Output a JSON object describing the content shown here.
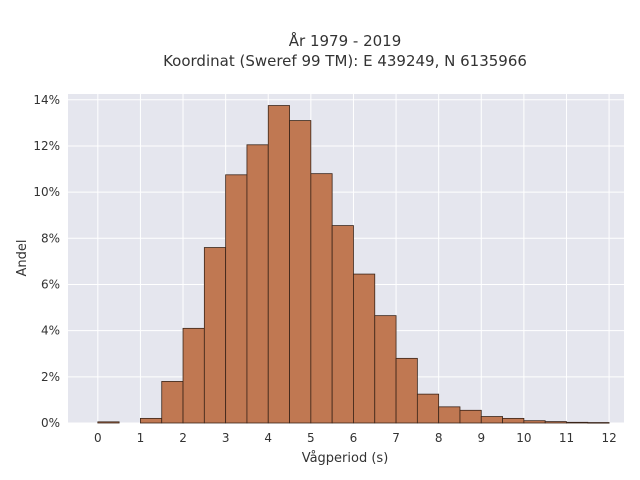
{
  "chart_data": {
    "type": "bar",
    "title": [
      "År 1979 - 2019",
      "Koordinat (Sweref 99 TM): E 439249, N 6135966"
    ],
    "xlabel": "Vågperiod (s)",
    "ylabel": "Andel",
    "bin_width": 0.5,
    "bin_starts": [
      0,
      0.5,
      1,
      1.5,
      2,
      2.5,
      3,
      3.5,
      4,
      4.5,
      5,
      5.5,
      6,
      6.5,
      7,
      7.5,
      8,
      8.5,
      9,
      9.5,
      10,
      10.5,
      11,
      11.5
    ],
    "values": [
      0.0005,
      0,
      0.002,
      0.018,
      0.041,
      0.076,
      0.1075,
      0.1205,
      0.1375,
      0.131,
      0.108,
      0.0855,
      0.0645,
      0.0465,
      0.028,
      0.0125,
      0.007,
      0.0055,
      0.0028,
      0.002,
      0.001,
      0.0006,
      0.0003,
      0.0002
    ],
    "xlim": [
      -0.7,
      12.35
    ],
    "ylim": [
      0,
      0.1425
    ],
    "xticks": [
      0,
      1,
      2,
      3,
      4,
      5,
      6,
      7,
      8,
      9,
      10,
      11,
      12
    ],
    "xtick_labels": [
      "0",
      "1",
      "2",
      "3",
      "4",
      "5",
      "6",
      "7",
      "8",
      "9",
      "10",
      "11",
      "12"
    ],
    "yticks": [
      0,
      0.02,
      0.04,
      0.06,
      0.08,
      0.1,
      0.12,
      0.14
    ],
    "ytick_labels": [
      "0%",
      "2%",
      "4%",
      "6%",
      "8%",
      "10%",
      "12%",
      "14%"
    ],
    "grid": true,
    "legend": "none",
    "colors": {
      "bar_fill": "#c07852",
      "bar_edge": "#3a2418",
      "plot_background": "#e5e6ee",
      "grid": "#ffffff",
      "text": "#333333"
    }
  }
}
